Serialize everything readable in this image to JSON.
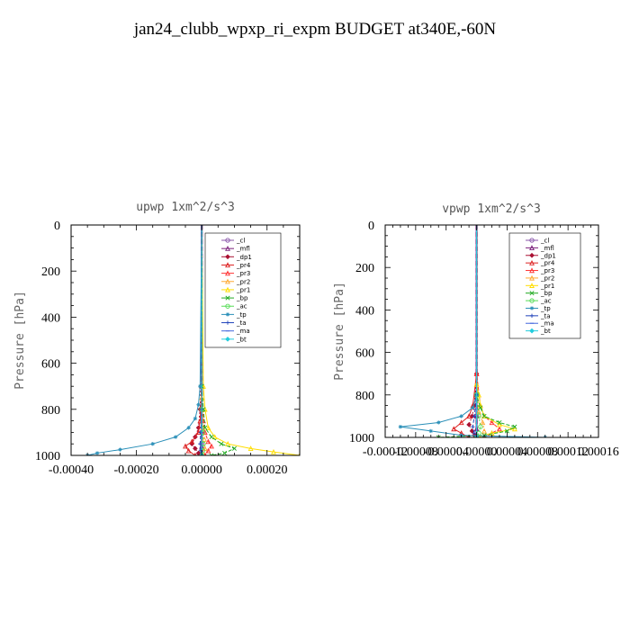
{
  "title": "jan24_clubb_wpxp_ri_expm  BUDGET at340E,-60N",
  "chart_data": [
    {
      "type": "line",
      "title": "upwp   1xm^2/s^3",
      "ylabel": "Pressure [hPa]",
      "xlabel": "",
      "ylim": [
        1000,
        0
      ],
      "xlim": [
        -0.0004,
        0.0003
      ],
      "xticks": [
        "-0.00040",
        "-0.00020",
        "0.00000",
        "0.00020"
      ],
      "xtick_values": [
        -0.0004,
        -0.0002,
        0.0,
        0.0002
      ],
      "yticks": [
        "0",
        "200",
        "400",
        "600",
        "800",
        "1000"
      ],
      "ytick_values": [
        0,
        200,
        400,
        600,
        800,
        1000
      ],
      "legend_position": "top-right",
      "series": [
        {
          "name": "_cl",
          "color": "#8855aa",
          "y": [
            0,
            100,
            200,
            300,
            400,
            500,
            600,
            700,
            800,
            900,
            950,
            975,
            1000
          ],
          "x": [
            0,
            0,
            0,
            0,
            0,
            0,
            0,
            0,
            0,
            0,
            0,
            0,
            0
          ]
        },
        {
          "name": "_mfl",
          "color": "#7a1f7a",
          "y": [
            0,
            200,
            400,
            600,
            800,
            900,
            960,
            1000
          ],
          "x": [
            0,
            0,
            0,
            0,
            0,
            0,
            0,
            0
          ]
        },
        {
          "name": "_dp1",
          "color": "#aa1133",
          "y": [
            0,
            600,
            800,
            880,
            920,
            950,
            970,
            990,
            1000
          ],
          "x": [
            0,
            0,
            -5e-06,
            -1e-05,
            -2e-05,
            -3e-05,
            -2e-05,
            -1e-05,
            0
          ]
        },
        {
          "name": "_pr4",
          "color": "#dd2222",
          "y": [
            0,
            700,
            850,
            900,
            940,
            960,
            980,
            1000
          ],
          "x": [
            0,
            0,
            -5e-06,
            -1e-05,
            -3e-05,
            -5e-05,
            -4e-05,
            -2e-05
          ]
        },
        {
          "name": "_pr3",
          "color": "#ff3333",
          "y": [
            0,
            700,
            850,
            900,
            940,
            960,
            980,
            1000
          ],
          "x": [
            0,
            0,
            5e-06,
            1e-05,
            2e-05,
            3e-05,
            2e-05,
            1e-05
          ]
        },
        {
          "name": "_pr2",
          "color": "#ffaa33",
          "y": [
            0,
            750,
            880,
            930,
            970,
            1000
          ],
          "x": [
            0,
            0,
            3e-06,
            8e-06,
            1e-05,
            5e-06
          ]
        },
        {
          "name": "_pr1",
          "color": "#ffdd00",
          "y": [
            0,
            700,
            800,
            880,
            920,
            950,
            970,
            985,
            1000
          ],
          "x": [
            0,
            5e-06,
            1e-05,
            2e-05,
            4e-05,
            8e-05,
            0.00015,
            0.00022,
            0.0003
          ]
        },
        {
          "name": "_bp",
          "color": "#22aa22",
          "y": [
            0,
            700,
            800,
            880,
            920,
            950,
            970,
            990,
            1000
          ],
          "x": [
            0,
            0,
            5e-06,
            1e-05,
            3e-05,
            6e-05,
            0.0001,
            7e-05,
            3e-05
          ]
        },
        {
          "name": "_ac",
          "color": "#55dd55",
          "y": [
            0,
            800,
            900,
            950,
            980,
            1000
          ],
          "x": [
            0,
            0,
            3e-06,
            5e-06,
            3e-06,
            0
          ]
        },
        {
          "name": "_tp",
          "color": "#2a8fb8",
          "y": [
            0,
            700,
            780,
            840,
            880,
            920,
            950,
            975,
            990,
            1000
          ],
          "x": [
            0,
            -5e-06,
            -1e-05,
            -2e-05,
            -4e-05,
            -8e-05,
            -0.00015,
            -0.00025,
            -0.00032,
            -0.00035
          ]
        },
        {
          "name": "_ta",
          "color": "#2244bb",
          "y": [
            0,
            800,
            900,
            950,
            980,
            1000
          ],
          "x": [
            0,
            0,
            -3e-06,
            -5e-06,
            -3e-06,
            0
          ]
        },
        {
          "name": "_ma",
          "color": "#4466dd",
          "y": [
            0,
            1000
          ],
          "x": [
            0,
            0
          ]
        },
        {
          "name": "_bt",
          "color": "#22ccdd",
          "y": [
            0,
            1000
          ],
          "x": [
            0,
            0
          ]
        }
      ]
    },
    {
      "type": "line",
      "title": "vpwp   1xm^2/s^3",
      "ylabel": "Pressure [hPa]",
      "xlabel": "",
      "ylim": [
        1000,
        0
      ],
      "xlim": [
        -0.00012,
        0.00016
      ],
      "xticks": [
        "-0.00012",
        "-0.00008",
        "-0.00004",
        "0.00000",
        "0.00004",
        "0.00008",
        "0.00012",
        "0.00016"
      ],
      "xtick_values": [
        -0.00012,
        -8e-05,
        -4e-05,
        0.0,
        4e-05,
        8e-05,
        0.00012,
        0.00016
      ],
      "xtick_text": "-0.000120.000080.000040.000000.000040.000080.000120.00016",
      "yticks": [
        "0",
        "200",
        "400",
        "600",
        "800",
        "1000"
      ],
      "ytick_values": [
        0,
        200,
        400,
        600,
        800,
        1000
      ],
      "legend_position": "top-right",
      "series": [
        {
          "name": "_cl",
          "color": "#8855aa",
          "y": [
            0,
            200,
            400,
            600,
            800,
            900,
            1000
          ],
          "x": [
            0,
            0,
            0,
            0,
            0,
            0,
            0
          ]
        },
        {
          "name": "_mfl",
          "color": "#7a1f7a",
          "y": [
            0,
            200,
            400,
            600,
            800,
            900,
            960,
            1000
          ],
          "x": [
            0,
            0,
            0,
            0,
            0,
            0,
            0,
            0
          ]
        },
        {
          "name": "_dp1",
          "color": "#aa1133",
          "y": [
            0,
            700,
            850,
            900,
            940,
            970,
            990,
            1000
          ],
          "x": [
            0,
            0,
            -3e-06,
            -6e-06,
            -1e-05,
            -6e-06,
            -3e-06,
            0
          ]
        },
        {
          "name": "_pr4",
          "color": "#dd2222",
          "y": [
            0,
            700,
            850,
            900,
            930,
            960,
            980,
            1000
          ],
          "x": [
            0,
            0,
            -5e-06,
            -1e-05,
            -2e-05,
            -3e-05,
            -2e-05,
            -1e-05
          ]
        },
        {
          "name": "_pr3",
          "color": "#ff3333",
          "y": [
            0,
            700,
            850,
            900,
            930,
            960,
            980,
            1000
          ],
          "x": [
            0,
            0,
            5e-06,
            1e-05,
            2e-05,
            3e-05,
            2e-05,
            1e-05
          ]
        },
        {
          "name": "_pr2",
          "color": "#ffaa33",
          "y": [
            0,
            750,
            880,
            930,
            970,
            1000
          ],
          "x": [
            0,
            0,
            3e-06,
            8e-06,
            1e-05,
            5e-06
          ]
        },
        {
          "name": "_pr1",
          "color": "#ffdd00",
          "y": [
            0,
            750,
            800,
            850,
            900,
            940,
            960,
            980,
            1000
          ],
          "x": [
            0,
            0,
            3e-06,
            5e-06,
            1e-05,
            3e-05,
            5e-05,
            2e-05,
            0
          ]
        },
        {
          "name": "_bp",
          "color": "#22aa22",
          "y": [
            0,
            800,
            860,
            900,
            930,
            950,
            970,
            990,
            1000
          ],
          "x": [
            0,
            0,
            5e-06,
            1e-05,
            3e-05,
            5e-05,
            4e-05,
            1e-05,
            -5e-05
          ]
        },
        {
          "name": "_ac",
          "color": "#55dd55",
          "y": [
            0,
            800,
            900,
            950,
            980,
            1000
          ],
          "x": [
            0,
            0,
            3e-06,
            5e-06,
            3e-06,
            0
          ]
        },
        {
          "name": "_tp",
          "color": "#2a8fb8",
          "y": [
            0,
            800,
            860,
            900,
            930,
            950,
            970,
            990,
            1000
          ],
          "x": [
            0,
            0,
            -5e-06,
            -2e-05,
            -5e-05,
            -0.0001,
            -6e-05,
            -2e-05,
            9e-05
          ]
        },
        {
          "name": "_ta",
          "color": "#2244bb",
          "y": [
            0,
            800,
            900,
            950,
            980,
            1000
          ],
          "x": [
            0,
            0,
            -3e-06,
            -5e-06,
            -3e-06,
            0
          ]
        },
        {
          "name": "_ma",
          "color": "#4466dd",
          "y": [
            0,
            1000
          ],
          "x": [
            0,
            0
          ]
        },
        {
          "name": "_bt",
          "color": "#22ccdd",
          "y": [
            0,
            1000
          ],
          "x": [
            0,
            0
          ]
        }
      ]
    }
  ]
}
